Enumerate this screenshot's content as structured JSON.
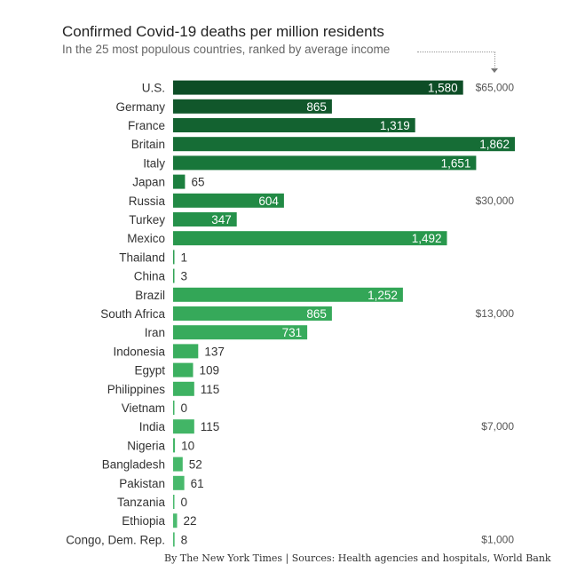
{
  "chart_data": {
    "type": "bar",
    "orientation": "horizontal",
    "title": "Confirmed Covid-19 deaths per million residents",
    "subtitle": "In the 25 most populous countries, ranked by average income",
    "categories": [
      "U.S.",
      "Germany",
      "France",
      "Britain",
      "Italy",
      "Japan",
      "Russia",
      "Turkey",
      "Mexico",
      "Thailand",
      "China",
      "Brazil",
      "South Africa",
      "Iran",
      "Indonesia",
      "Egypt",
      "Philippines",
      "Vietnam",
      "India",
      "Nigeria",
      "Bangladesh",
      "Pakistan",
      "Tanzania",
      "Ethiopia",
      "Congo, Dem. Rep."
    ],
    "values": [
      1580,
      865,
      1319,
      1862,
      1651,
      65,
      604,
      347,
      1492,
      1,
      3,
      1252,
      865,
      731,
      137,
      109,
      115,
      0,
      115,
      10,
      52,
      61,
      0,
      22,
      8
    ],
    "value_labels": [
      "1,580",
      "865",
      "1,319",
      "1,862",
      "1,651",
      "65",
      "604",
      "347",
      "1,492",
      "1",
      "3",
      "1,252",
      "865",
      "731",
      "137",
      "109",
      "115",
      "0",
      "115",
      "10",
      "52",
      "61",
      "0",
      "22",
      "8"
    ],
    "colors": [
      "#0d4d26",
      "#11572b",
      "#136230",
      "#166d36",
      "#18763a",
      "#1c7f3f",
      "#228a45",
      "#25914a",
      "#29984d",
      "#2c9e51",
      "#30a354",
      "#33a657",
      "#36a95a",
      "#38ab5c",
      "#3aae5e",
      "#3cb060",
      "#3eb262",
      "#40b364",
      "#42b566",
      "#44b668",
      "#46b86a",
      "#48b96c",
      "#4aba6e",
      "#4cbb70",
      "#4ebc72"
    ],
    "income_axis": {
      "labels": [
        "$65,000",
        "$30,000",
        "$13,000",
        "$7,000",
        "$1,000"
      ],
      "at_category": [
        "U.S.",
        "Russia",
        "South Africa",
        "India",
        "Congo, Dem. Rep."
      ]
    },
    "xlim": [
      0,
      1862
    ],
    "xlabel": "",
    "ylabel": ""
  },
  "credit": "By The New York Times | Sources: Health agencies and hospitals, World Bank"
}
